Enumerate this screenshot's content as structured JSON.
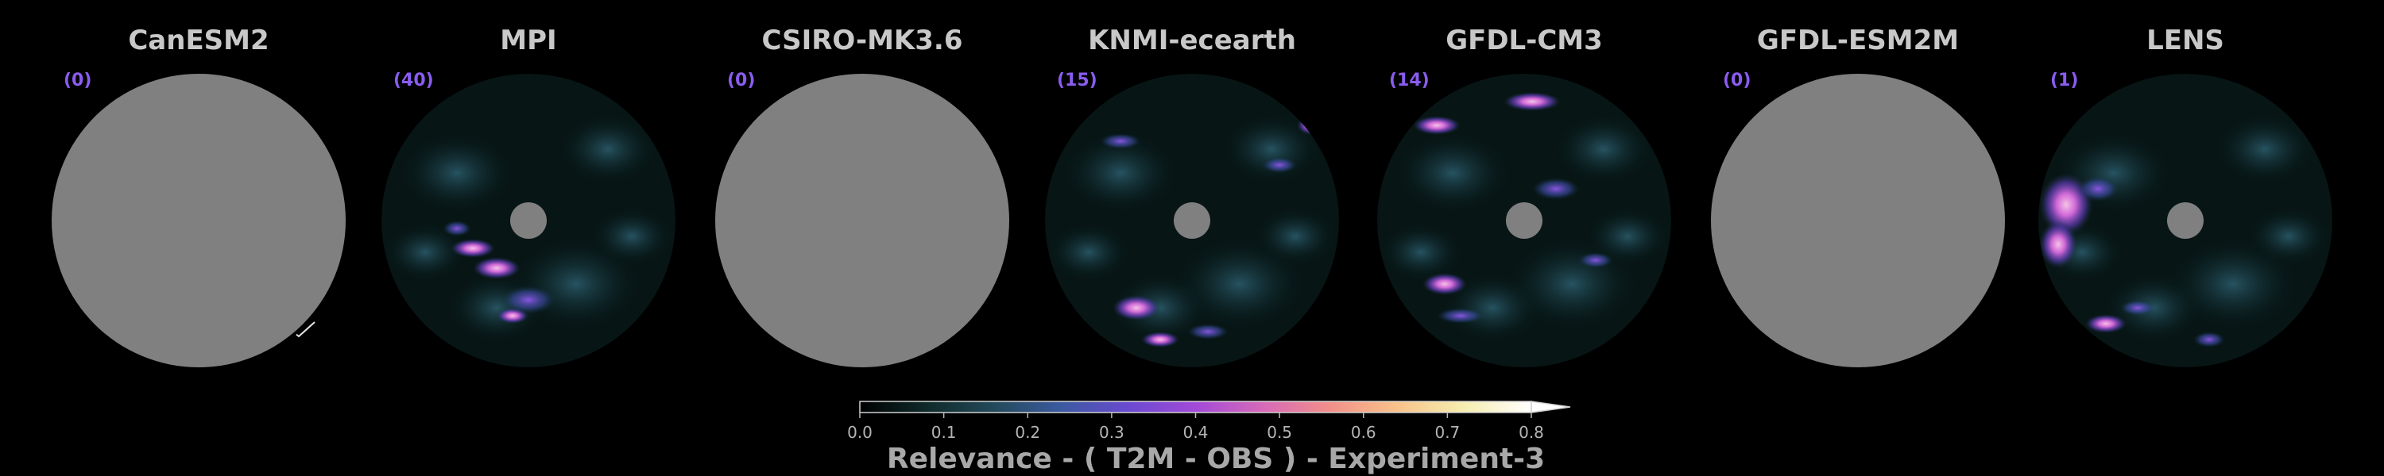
{
  "panels": [
    {
      "title": "CanESM2",
      "count": "(0)",
      "empty": true
    },
    {
      "title": "MPI",
      "count": "(40)",
      "empty": false
    },
    {
      "title": "CSIRO-MK3.6",
      "count": "(0)",
      "empty": true
    },
    {
      "title": "KNMI-ecearth",
      "count": "(15)",
      "empty": false
    },
    {
      "title": "GFDL-CM3",
      "count": "(14)",
      "empty": false
    },
    {
      "title": "GFDL-ESM2M",
      "count": "(0)",
      "empty": true
    },
    {
      "title": "LENS",
      "count": "(1)",
      "empty": false
    }
  ],
  "colorbar": {
    "label": "Relevance - ( T2M - OBS ) - Experiment-3",
    "ticks": [
      "0.0",
      "0.1",
      "0.2",
      "0.3",
      "0.4",
      "0.5",
      "0.6",
      "0.7",
      "0.8"
    ],
    "range": [
      0.0,
      0.8
    ],
    "extend": "max",
    "colors": [
      "#000000",
      "#0f2a2a",
      "#234a5a",
      "#3b5aa0",
      "#6a4ad0",
      "#a24ad8",
      "#d66ab8",
      "#f28f8a",
      "#f8c28a",
      "#f6eeb0",
      "#ffffff"
    ]
  },
  "colors": {
    "background": "#000000",
    "masked_disk": "#808080",
    "coastline": "#e6e6e6",
    "map_base": "#071515",
    "title": "#c8c8c8",
    "count": "#8a5cf0"
  },
  "projection": "north-polar-stereographic"
}
